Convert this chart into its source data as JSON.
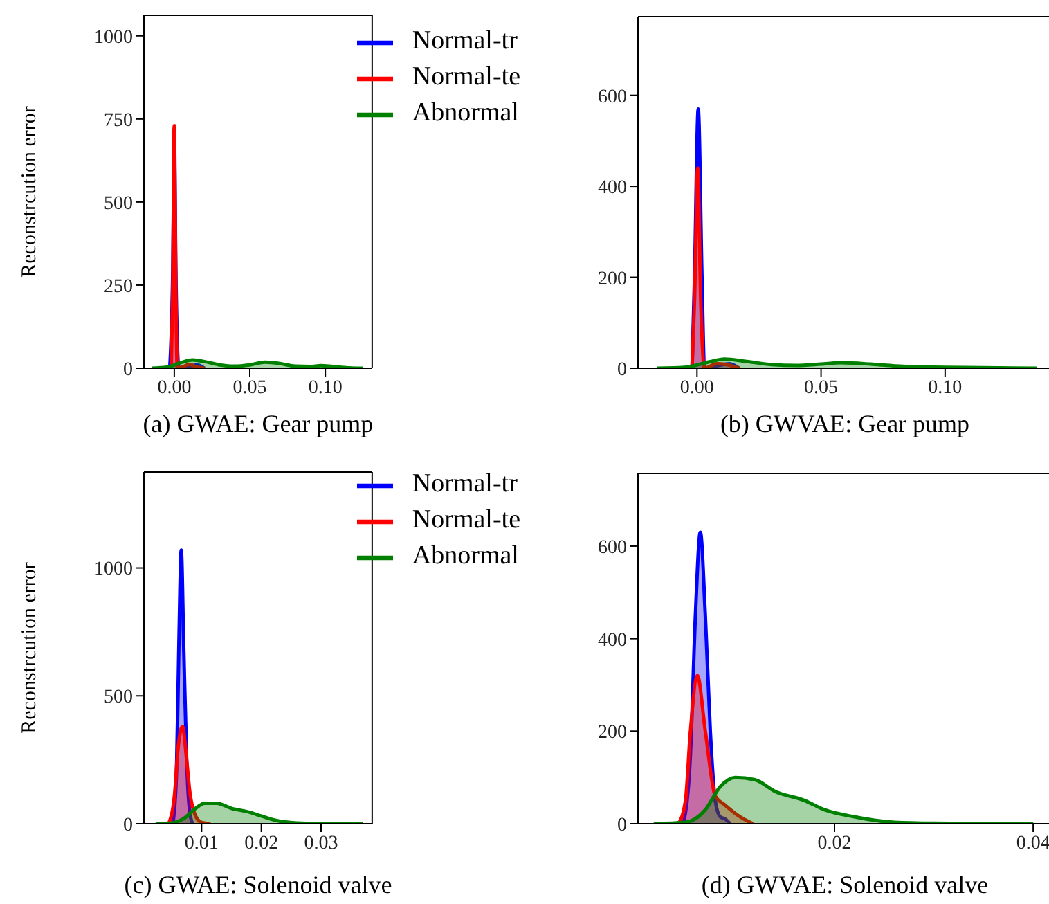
{
  "chart_data": [
    {
      "type": "area",
      "xlabel": "(a) GWAE: Gear pump",
      "ylabel": "Reconstrcution error",
      "xlim": [
        -0.0201,
        0.131
      ],
      "ylim": [
        0,
        1062
      ],
      "xticks": [
        {
          "value": 0,
          "label": "0.00"
        },
        {
          "value": 0.05,
          "label": "0.05"
        },
        {
          "value": 0.1,
          "label": "0.10"
        }
      ],
      "yticks": [
        0,
        250,
        500,
        750,
        1000
      ],
      "grid": false,
      "legend": "top right",
      "series": [
        {
          "name": "Normal-tr",
          "color": "#0000ff",
          "x": [
            -0.003,
            -0.001,
            0,
            0.001,
            0.003,
            0.01,
            0.015,
            0.02
          ],
          "values": [
            0,
            300,
            720,
            300,
            0,
            5,
            10,
            0
          ]
        },
        {
          "name": "Normal-te",
          "color": "#ff0000",
          "x": [
            -0.002,
            -0.001,
            0,
            0.001,
            0.002,
            0.006,
            0.01,
            0.014,
            0.02
          ],
          "values": [
            0,
            250,
            730,
            250,
            0,
            5,
            12,
            5,
            0
          ]
        },
        {
          "name": "Abnormal",
          "color": "#008000",
          "x": [
            -0.015,
            -0.005,
            0.005,
            0.012,
            0.02,
            0.03,
            0.04,
            0.05,
            0.06,
            0.07,
            0.08,
            0.09,
            0.097,
            0.105,
            0.115,
            0.125
          ],
          "values": [
            0,
            3,
            18,
            25,
            20,
            10,
            6,
            10,
            18,
            14,
            6,
            5,
            8,
            5,
            1,
            0
          ]
        }
      ]
    },
    {
      "type": "area",
      "xlabel": "(b) GWVAE: Gear pump",
      "xlim": [
        -0.0238,
        0.143
      ],
      "ylim": [
        0,
        773
      ],
      "xticks": [
        {
          "value": 0,
          "label": "0.00"
        },
        {
          "value": 0.05,
          "label": "0.05"
        },
        {
          "value": 0.1,
          "label": "0.10"
        }
      ],
      "yticks": [
        0,
        200,
        400,
        600
      ],
      "grid": false,
      "legend": false,
      "series": [
        {
          "color": "#0000ff",
          "x": [
            -0.002,
            -0.001,
            0.0005,
            0.002,
            0.003,
            0.008,
            0.013,
            0.017
          ],
          "values": [
            0,
            200,
            570,
            200,
            0,
            5,
            10,
            0
          ]
        },
        {
          "color": "#ff0000",
          "x": [
            -0.002,
            -0.001,
            0.0003,
            0.0015,
            0.003,
            0.008,
            0.012,
            0.017
          ],
          "values": [
            0,
            150,
            440,
            150,
            0,
            10,
            8,
            0
          ]
        },
        {
          "color": "#008000",
          "x": [
            -0.016,
            -0.005,
            0.005,
            0.011,
            0.02,
            0.03,
            0.04,
            0.05,
            0.058,
            0.07,
            0.08,
            0.09,
            0.1,
            0.115,
            0.137
          ],
          "values": [
            0,
            2,
            14,
            20,
            15,
            8,
            6,
            9,
            12,
            9,
            5,
            3,
            2,
            1,
            0
          ]
        }
      ]
    },
    {
      "type": "area",
      "xlabel": "(c) GWAE: Solenoid valve",
      "ylabel": "Reconstrcution error",
      "xlim": [
        0.00035,
        0.03855
      ],
      "ylim": [
        0,
        1375
      ],
      "xticks": [
        {
          "value": 0.01,
          "label": "0.01"
        },
        {
          "value": 0.02,
          "label": "0.02"
        },
        {
          "value": 0.03,
          "label": "0.03"
        }
      ],
      "yticks": [
        0,
        500,
        1000
      ],
      "grid": false,
      "legend": "top right",
      "series": [
        {
          "name": "Normal-tr",
          "color": "#0000ff",
          "x": [
            0.0052,
            0.0058,
            0.0062,
            0.0066,
            0.007,
            0.0075,
            0.008,
            0.0085
          ],
          "values": [
            0,
            200,
            700,
            1070,
            700,
            250,
            50,
            0
          ]
        },
        {
          "name": "Normal-te",
          "color": "#ff0000",
          "x": [
            0.0045,
            0.0055,
            0.006,
            0.0068,
            0.0075,
            0.008,
            0.009,
            0.01,
            0.0115
          ],
          "values": [
            0,
            120,
            280,
            380,
            250,
            130,
            30,
            5,
            0
          ]
        },
        {
          "name": "Abnormal",
          "color": "#008000",
          "x": [
            0.0023,
            0.005,
            0.007,
            0.009,
            0.0105,
            0.0125,
            0.015,
            0.018,
            0.02,
            0.023,
            0.026,
            0.03,
            0.037
          ],
          "values": [
            0,
            3,
            20,
            60,
            80,
            80,
            60,
            45,
            30,
            10,
            3,
            1,
            0
          ]
        }
      ]
    },
    {
      "type": "area",
      "xlabel": "(d) GWVAE: Solenoid valve",
      "xlim": [
        0.00022,
        0.04187
      ],
      "ylim": [
        0,
        757
      ],
      "xticks": [
        {
          "value": 0.02,
          "label": "0.02"
        },
        {
          "value": 0.04,
          "label": "0.04"
        }
      ],
      "yticks": [
        0,
        200,
        400,
        600
      ],
      "grid": false,
      "legend": false,
      "series": [
        {
          "color": "#0000ff",
          "x": [
            0.0048,
            0.0055,
            0.006,
            0.0065,
            0.007,
            0.0075,
            0.008,
            0.0085,
            0.009,
            0.0095
          ],
          "values": [
            0,
            150,
            450,
            630,
            450,
            200,
            50,
            15,
            10,
            0
          ]
        },
        {
          "color": "#ff0000",
          "x": [
            0.0043,
            0.005,
            0.0055,
            0.0062,
            0.007,
            0.008,
            0.009,
            0.0105,
            0.0118
          ],
          "values": [
            0,
            50,
            200,
            320,
            200,
            60,
            40,
            15,
            0
          ]
        },
        {
          "color": "#008000",
          "x": [
            0.0018,
            0.005,
            0.007,
            0.0085,
            0.01,
            0.012,
            0.014,
            0.017,
            0.019,
            0.022,
            0.026,
            0.03,
            0.04
          ],
          "values": [
            0,
            3,
            30,
            80,
            100,
            95,
            70,
            50,
            30,
            15,
            3,
            1,
            0
          ]
        }
      ]
    }
  ]
}
